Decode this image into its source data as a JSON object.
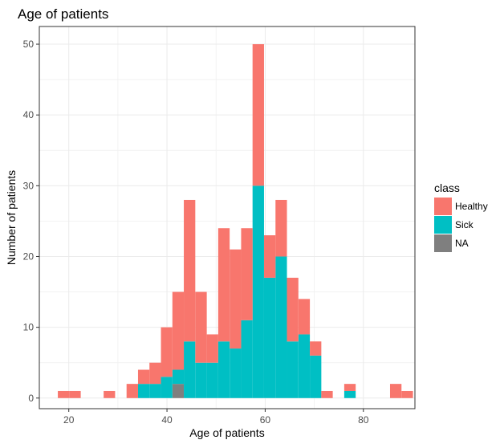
{
  "chart_data": {
    "type": "bar",
    "subtype": "stacked-histogram",
    "title": "Age of patients",
    "xlabel": "Age of patients",
    "ylabel": "Number of patients",
    "xlim": [
      14,
      90.5
    ],
    "ylim": [
      -1.5,
      52.5
    ],
    "xticks": [
      20,
      40,
      60,
      80
    ],
    "yticks": [
      0,
      10,
      20,
      30,
      40,
      50
    ],
    "bin_width": 2.333,
    "bin_starts": [
      17.77,
      20.1,
      22.43,
      24.77,
      27.1,
      29.43,
      31.77,
      34.1,
      36.43,
      38.77,
      41.1,
      43.43,
      45.77,
      48.1,
      50.43,
      52.77,
      55.1,
      57.43,
      59.77,
      62.1,
      64.43,
      66.77,
      69.1,
      71.43,
      73.77,
      76.1,
      78.43,
      80.77,
      83.1,
      85.43,
      87.77
    ],
    "grid": true,
    "legend": {
      "title": "class",
      "position": "right"
    },
    "series": [
      {
        "name": "NA",
        "color": "#7f7f7f",
        "values": [
          0,
          0,
          0,
          0,
          0,
          0,
          0,
          0,
          0,
          0,
          2,
          0,
          0,
          0,
          0,
          0,
          0,
          0,
          0,
          0,
          0,
          0,
          0,
          0,
          0,
          0,
          0,
          0,
          0,
          0,
          0
        ]
      },
      {
        "name": "Sick",
        "color": "#00bfc4",
        "values": [
          0,
          0,
          0,
          0,
          0,
          0,
          0,
          2,
          2,
          3,
          2,
          8,
          5,
          5,
          8,
          7,
          11,
          30,
          17,
          20,
          8,
          9,
          6,
          0,
          0,
          1,
          0,
          0,
          0,
          0,
          0
        ]
      },
      {
        "name": "Healthy",
        "color": "#f8766d",
        "values": [
          1,
          1,
          0,
          0,
          1,
          0,
          2,
          2,
          3,
          7,
          11,
          20,
          10,
          4,
          16,
          14,
          13,
          20,
          6,
          8,
          9,
          5,
          2,
          1,
          0,
          1,
          0,
          0,
          0,
          2,
          1
        ]
      }
    ],
    "legend_entries": [
      {
        "name": "Healthy",
        "color": "#f8766d"
      },
      {
        "name": "Sick",
        "color": "#00bfc4"
      },
      {
        "name": "NA",
        "color": "#7f7f7f"
      }
    ]
  }
}
